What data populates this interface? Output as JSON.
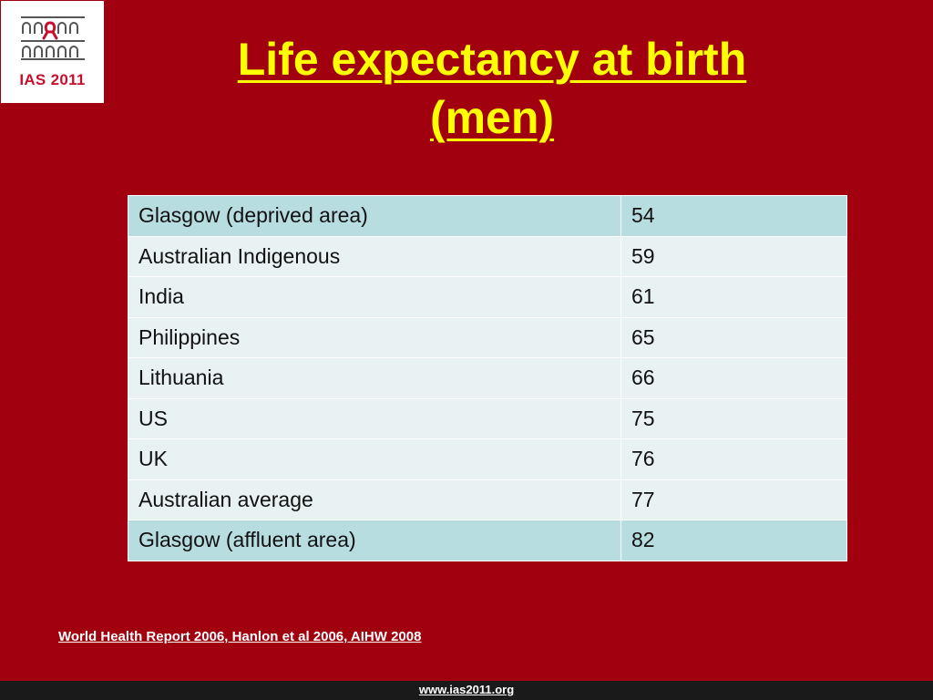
{
  "logo": {
    "text": "IAS 2011"
  },
  "title": {
    "line1": "Life expectancy at birth",
    "line2": "(men)"
  },
  "table": {
    "rows": [
      {
        "name": "Glasgow (deprived area)",
        "value": "54"
      },
      {
        "name": "Australian Indigenous",
        "value": "59"
      },
      {
        "name": "India",
        "value": "61"
      },
      {
        "name": "Philippines",
        "value": "65"
      },
      {
        "name": "Lithuania",
        "value": "66"
      },
      {
        "name": "US",
        "value": "75"
      },
      {
        "name": "UK",
        "value": "76"
      },
      {
        "name": "Australian average",
        "value": "77"
      },
      {
        "name": "Glasgow (affluent area)",
        "value": "82"
      }
    ]
  },
  "source": "World Health Report 2006, Hanlon et al 2006, AIHW 2008",
  "footer": {
    "url": "www.ias2011.org"
  },
  "colors": {
    "background": "#a1000f",
    "title": "#ffff00",
    "table_header_row": "#b7dde1",
    "table_row": "#e9f2f3",
    "logo_red": "#c8102e"
  }
}
